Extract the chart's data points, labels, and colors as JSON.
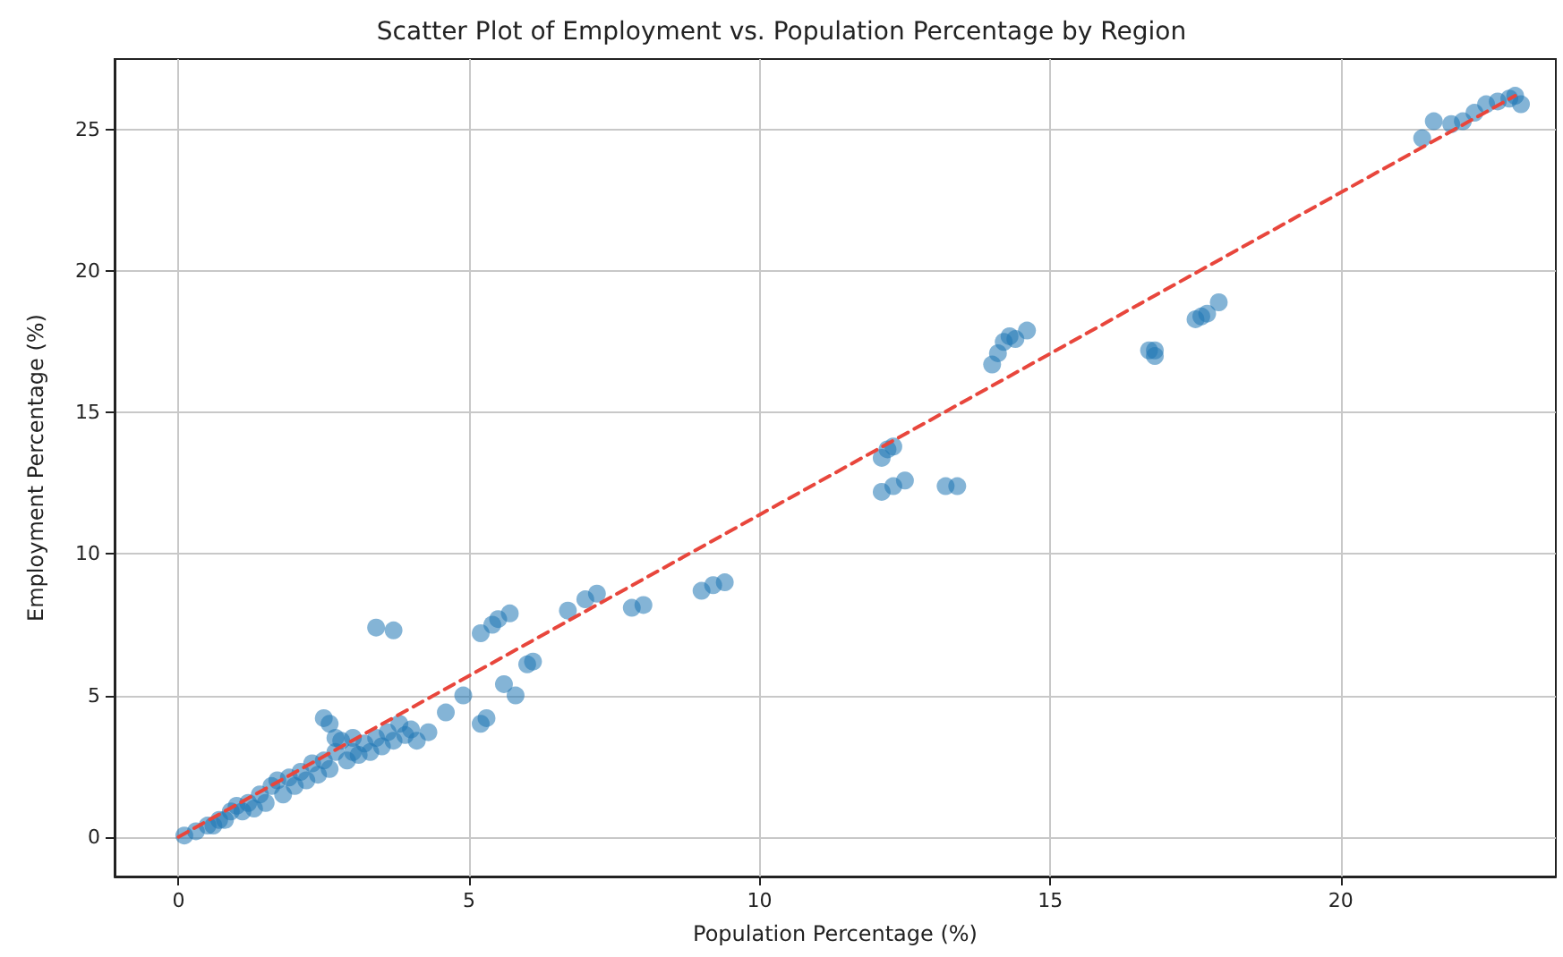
{
  "chart_data": {
    "type": "scatter",
    "title": "Scatter Plot of Employment vs. Population Percentage by Region",
    "xlabel": "Population Percentage (%)",
    "ylabel": "Employment Percentage (%)",
    "xlim": [
      -1.1,
      23.7
    ],
    "xticks": [
      0,
      5,
      10,
      15,
      20
    ],
    "ylim": [
      -1.4,
      27.5
    ],
    "yticks": [
      0,
      5,
      10,
      15,
      20,
      25
    ],
    "grid": true,
    "series": [
      {
        "color": "#1f77b4",
        "marker": "circle",
        "x": [
          21.4,
          21.6,
          21.9,
          22.1,
          22.3,
          22.5,
          22.7,
          22.9,
          23.0,
          23.1,
          14.0,
          14.1,
          14.2,
          14.3,
          14.6,
          14.4,
          16.8,
          16.8,
          16.7,
          17.5,
          17.7,
          17.9,
          17.6,
          12.1,
          12.2,
          12.3,
          12.1,
          12.3,
          12.5,
          13.2,
          13.4,
          9.0,
          9.2,
          9.4,
          6.7,
          7.0,
          7.2,
          7.8,
          8.0,
          5.2,
          5.4,
          5.7,
          5.5,
          3.4,
          3.7,
          5.6,
          5.8,
          6.0,
          6.1,
          5.2,
          5.3,
          4.9,
          2.5,
          2.6,
          0.1,
          0.3,
          0.5,
          0.7,
          0.9,
          1.0,
          1.2,
          1.4,
          1.6,
          1.7,
          1.9,
          2.1,
          2.3,
          2.5,
          2.7,
          2.8,
          3.0,
          3.2,
          3.4,
          3.6,
          3.8,
          4.0,
          4.3,
          4.6,
          4.1,
          0.6,
          0.8,
          1.1,
          1.3,
          1.5,
          1.8,
          2.0,
          2.2,
          2.4,
          2.6,
          2.9,
          3.1,
          3.3,
          3.5,
          3.7,
          3.9,
          2.7,
          3.0
        ],
        "values": [
          24.7,
          25.3,
          25.2,
          25.3,
          25.6,
          25.9,
          26.0,
          26.1,
          26.2,
          25.9,
          16.7,
          17.1,
          17.5,
          17.7,
          17.9,
          17.6,
          17.0,
          17.2,
          17.2,
          18.3,
          18.5,
          18.9,
          18.4,
          13.4,
          13.7,
          13.8,
          12.2,
          12.4,
          12.6,
          12.4,
          12.4,
          8.7,
          8.9,
          9.0,
          8.0,
          8.4,
          8.6,
          8.1,
          8.2,
          7.2,
          7.5,
          7.9,
          7.7,
          7.4,
          7.3,
          5.4,
          5.0,
          6.1,
          6.2,
          4.0,
          4.2,
          5.0,
          4.2,
          4.0,
          0.05,
          0.2,
          0.4,
          0.6,
          0.9,
          1.1,
          1.2,
          1.5,
          1.8,
          2.0,
          2.1,
          2.3,
          2.6,
          2.7,
          3.0,
          3.4,
          3.5,
          3.3,
          3.5,
          3.7,
          4.0,
          3.8,
          3.7,
          4.4,
          3.4,
          0.4,
          0.6,
          0.9,
          1.0,
          1.2,
          1.5,
          1.8,
          2.0,
          2.2,
          2.4,
          2.7,
          2.9,
          3.0,
          3.2,
          3.4,
          3.6,
          3.5,
          3.0
        ]
      },
      {
        "type": "line",
        "color": "#e8463c",
        "line_style": "dashed",
        "marker": "none",
        "x": [
          0,
          23
        ],
        "values": [
          0,
          26.2
        ]
      }
    ]
  }
}
